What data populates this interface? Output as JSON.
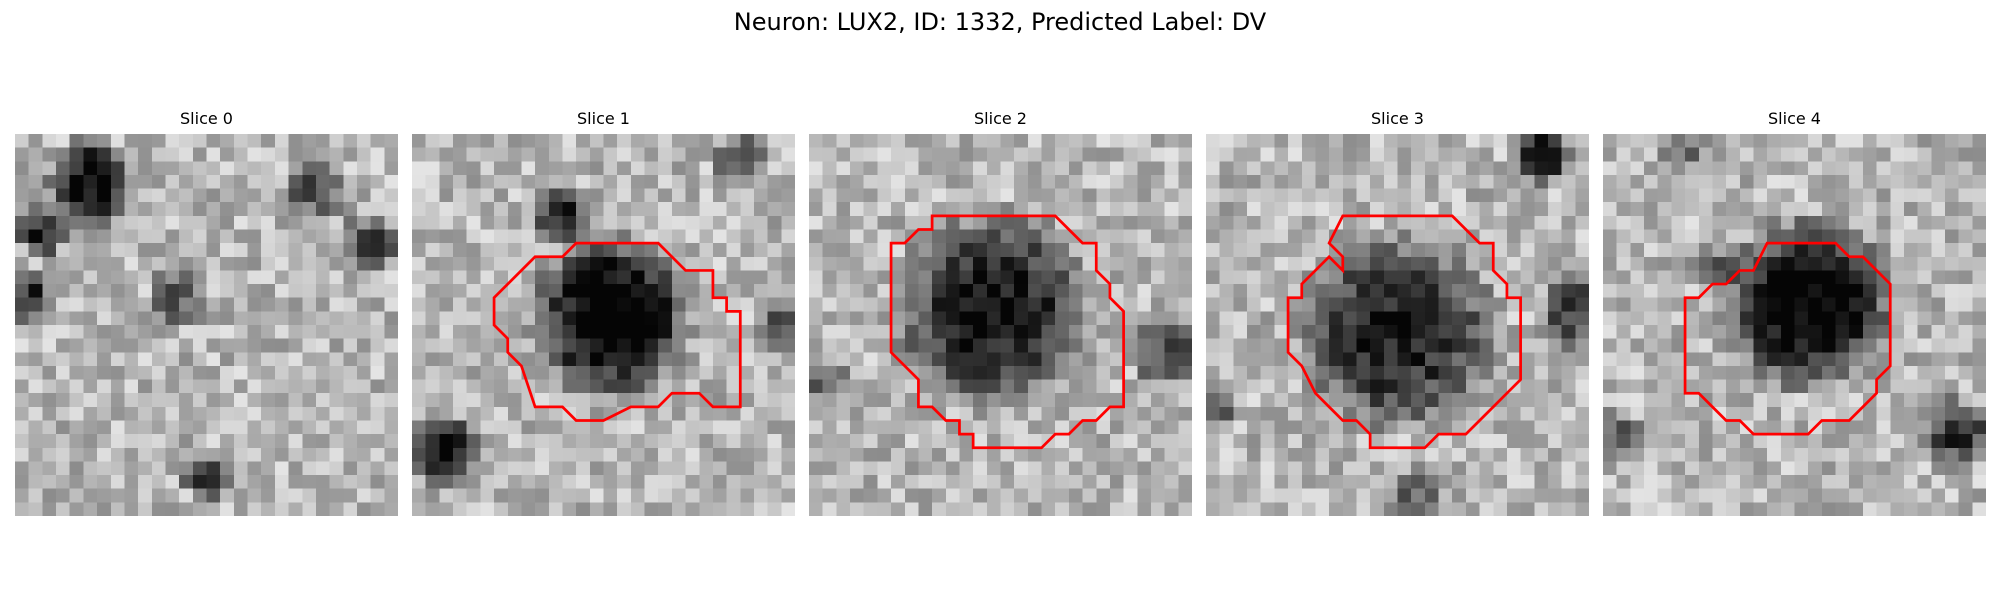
{
  "figure": {
    "title": "Neuron: LUX2, ID: 1332, Predicted Label: DV"
  },
  "panels": [
    {
      "title": "Slice 0",
      "has_contour": false
    },
    {
      "title": "Slice 1",
      "has_contour": true
    },
    {
      "title": "Slice 2",
      "has_contour": true
    },
    {
      "title": "Slice 3",
      "has_contour": true
    },
    {
      "title": "Slice 4",
      "has_contour": true
    }
  ],
  "style": {
    "contour_color": "#ff0000",
    "colormap": "grayscale",
    "grid_size": 28
  }
}
